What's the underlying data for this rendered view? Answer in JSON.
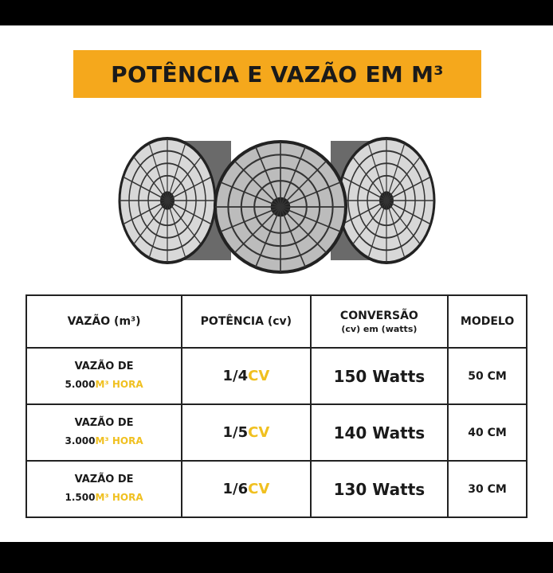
{
  "title": "POTÊNCIA E VAZÃO EM M³",
  "colors": {
    "banner": "#f5a81c",
    "accent": "#f0c020"
  },
  "table": {
    "headers": {
      "vazao": "VAZÃO (m³)",
      "potencia": "POTÊNCIA (cv)",
      "conversao": "CONVERSÃO",
      "conversao_sub": "(cv) em (watts)",
      "modelo": "MODELO"
    },
    "rows": [
      {
        "vazao_label": "VAZÃO DE",
        "volume": "5.000",
        "unit": "M³ HORA",
        "power": "1/4",
        "power_unit": "CV",
        "watts": "150 Watts",
        "model": "50 CM"
      },
      {
        "vazao_label": "VAZÃO DE",
        "volume": "3.000",
        "unit": "M³ HORA",
        "power": "1/5",
        "power_unit": "CV",
        "watts": "140 Watts",
        "model": "40 CM"
      },
      {
        "vazao_label": "VAZÃO DE",
        "volume": "1.500",
        "unit": "M³ HORA",
        "power": "1/6",
        "power_unit": "CV",
        "watts": "130 Watts",
        "model": "30 CM"
      }
    ]
  }
}
